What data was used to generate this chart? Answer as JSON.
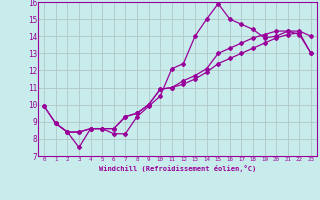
{
  "xlabel": "Windchill (Refroidissement éolien,°C)",
  "bg_color": "#c8ecec",
  "grid_color": "#b0c8c8",
  "line_color": "#990099",
  "xlim": [
    -0.5,
    23.5
  ],
  "ylim": [
    7,
    16
  ],
  "xticks": [
    0,
    1,
    2,
    3,
    4,
    5,
    6,
    7,
    8,
    9,
    10,
    11,
    12,
    13,
    14,
    15,
    16,
    17,
    18,
    19,
    20,
    21,
    22,
    23
  ],
  "yticks": [
    7,
    8,
    9,
    10,
    11,
    12,
    13,
    14,
    15,
    16
  ],
  "line1_x": [
    0,
    1,
    2,
    3,
    4,
    5,
    6,
    7,
    8,
    9,
    10,
    11,
    12,
    13,
    14,
    15,
    16,
    17,
    18,
    19,
    20,
    21,
    22,
    23
  ],
  "line1_y": [
    9.9,
    8.9,
    8.4,
    7.5,
    8.6,
    8.6,
    8.3,
    8.3,
    9.3,
    9.9,
    10.5,
    12.1,
    12.4,
    14.0,
    15.0,
    15.9,
    15.0,
    14.7,
    14.4,
    13.9,
    14.0,
    14.3,
    14.3,
    14.0
  ],
  "line2_x": [
    0,
    1,
    2,
    3,
    4,
    5,
    6,
    7,
    8,
    9,
    10,
    11,
    12,
    13,
    14,
    15,
    16,
    17,
    18,
    19,
    20,
    21,
    22,
    23
  ],
  "line2_y": [
    9.9,
    8.9,
    8.4,
    8.4,
    8.6,
    8.6,
    8.6,
    9.3,
    9.5,
    10.0,
    10.9,
    11.0,
    11.4,
    11.7,
    12.1,
    13.0,
    13.3,
    13.6,
    13.9,
    14.1,
    14.3,
    14.3,
    14.1,
    13.0
  ],
  "line3_x": [
    1,
    2,
    3,
    4,
    5,
    6,
    7,
    8,
    9,
    10,
    11,
    12,
    13,
    14,
    15,
    16,
    17,
    18,
    19,
    20,
    21,
    22,
    23
  ],
  "line3_y": [
    8.9,
    8.4,
    8.4,
    8.6,
    8.6,
    8.6,
    9.3,
    9.5,
    10.0,
    10.9,
    11.0,
    11.2,
    11.5,
    11.9,
    12.4,
    12.7,
    13.0,
    13.3,
    13.6,
    13.9,
    14.1,
    14.2,
    13.0
  ]
}
